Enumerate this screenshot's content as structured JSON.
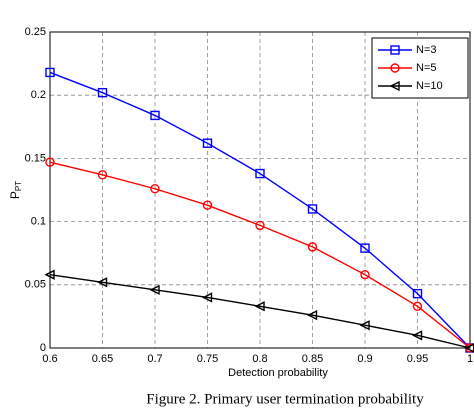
{
  "chart_data": {
    "type": "line",
    "xlabel": "Detection probability",
    "ylabel": "P",
    "ylabel_subscript": "PT",
    "caption": "Figure 2. Primary user termination probability",
    "x": [
      0.6,
      0.65,
      0.7,
      0.75,
      0.8,
      0.85,
      0.9,
      0.95,
      1
    ],
    "series": [
      {
        "name": "N=3",
        "color": "#0000ff",
        "marker": "square",
        "values": [
          0.218,
          0.202,
          0.184,
          0.162,
          0.138,
          0.11,
          0.079,
          0.043,
          0.0
        ]
      },
      {
        "name": "N=5",
        "color": "#ff0000",
        "marker": "circle",
        "values": [
          0.147,
          0.137,
          0.126,
          0.113,
          0.097,
          0.08,
          0.058,
          0.033,
          0.0
        ]
      },
      {
        "name": "N=10",
        "color": "#000000",
        "marker": "triangle-left",
        "values": [
          0.058,
          0.052,
          0.046,
          0.04,
          0.033,
          0.026,
          0.018,
          0.01,
          0.0
        ]
      }
    ],
    "xlim": [
      0.6,
      1
    ],
    "xticks": [
      0.6,
      0.65,
      0.7,
      0.75,
      0.8,
      0.85,
      0.9,
      0.95,
      1
    ],
    "ylim": [
      0,
      0.25
    ],
    "yticks": [
      0,
      0.05,
      0.1,
      0.15,
      0.2,
      0.25
    ],
    "grid": true,
    "legend": "top-right"
  }
}
